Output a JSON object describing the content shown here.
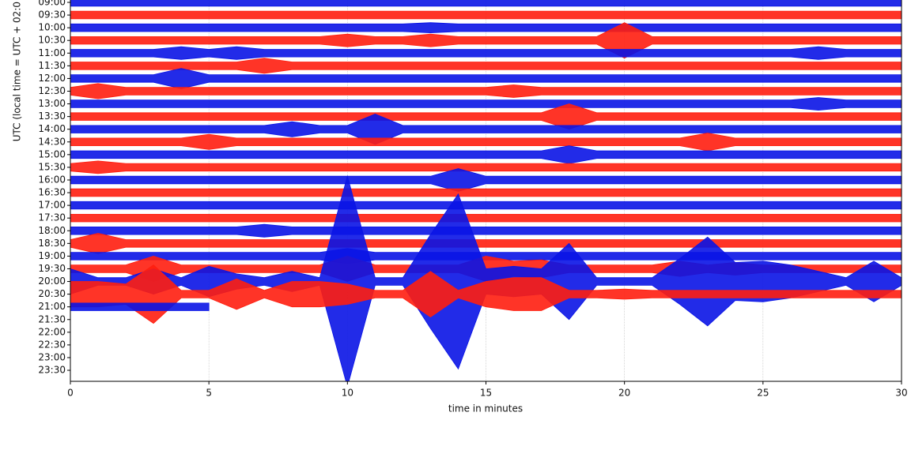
{
  "chart_data": {
    "type": "helicorder",
    "xlabel": "time in minutes",
    "ylabel": "UTC (local time = UTC + 02:0",
    "categories": [
      "09:00",
      "09:30",
      "10:00",
      "10:30",
      "11:00",
      "11:30",
      "12:00",
      "12:30",
      "13:00",
      "13:30",
      "14:00",
      "14:30",
      "15:00",
      "15:30",
      "16:00",
      "16:30",
      "17:00",
      "17:30",
      "18:00",
      "18:30",
      "19:00",
      "19:30",
      "20:00",
      "20:30",
      "21:00",
      "21:30",
      "22:00",
      "22:30",
      "23:00",
      "23:30"
    ],
    "xlim": [
      0,
      30
    ],
    "xticks": [
      0,
      5,
      10,
      15,
      20,
      25,
      30
    ],
    "grid": true,
    "x": [
      0,
      1,
      2,
      3,
      4,
      5,
      6,
      7,
      8,
      9,
      10,
      11,
      12,
      13,
      14,
      15,
      16,
      17,
      18,
      19,
      20,
      21,
      22,
      23,
      24,
      25,
      26,
      27,
      28,
      29,
      30
    ],
    "traces": [
      {
        "color": "#0a14e6",
        "values": [
          0.3,
          0.3,
          0.3,
          0.3,
          0.3,
          0.3,
          0.3,
          0.3,
          0.3,
          0.3,
          0.3,
          0.3,
          0.3,
          0.3,
          0.3,
          0.3,
          0.3,
          0.3,
          0.3,
          0.3,
          0.3,
          0.3,
          0.3,
          0.3,
          0.3,
          0.3,
          0.3,
          0.3,
          0.3,
          0.3,
          0.3
        ]
      },
      {
        "color": "#ff1e0f",
        "values": [
          0.3,
          0.3,
          0.3,
          0.3,
          0.3,
          0.3,
          0.3,
          0.3,
          0.3,
          0.3,
          0.3,
          0.3,
          0.3,
          0.3,
          0.3,
          0.3,
          0.3,
          0.3,
          0.3,
          0.3,
          0.3,
          0.3,
          0.3,
          0.3,
          0.3,
          0.3,
          0.3,
          0.3,
          0.3,
          0.3,
          0.3
        ]
      },
      {
        "color": "#0a14e6",
        "values": [
          0.3,
          0.3,
          0.3,
          0.3,
          0.3,
          0.3,
          0.3,
          0.3,
          0.3,
          0.3,
          0.3,
          0.3,
          0.3,
          0.4,
          0.3,
          0.3,
          0.3,
          0.3,
          0.3,
          0.3,
          0.3,
          0.3,
          0.3,
          0.3,
          0.3,
          0.3,
          0.3,
          0.3,
          0.3,
          0.3,
          0.3
        ]
      },
      {
        "color": "#ff1e0f",
        "values": [
          0.3,
          0.3,
          0.3,
          0.3,
          0.3,
          0.3,
          0.3,
          0.3,
          0.3,
          0.3,
          0.5,
          0.3,
          0.3,
          0.5,
          0.3,
          0.3,
          0.3,
          0.3,
          0.3,
          0.3,
          1.4,
          0.3,
          0.3,
          0.3,
          0.3,
          0.3,
          0.3,
          0.3,
          0.3,
          0.3,
          0.3
        ]
      },
      {
        "color": "#0a14e6",
        "values": [
          0.3,
          0.3,
          0.3,
          0.3,
          0.5,
          0.3,
          0.5,
          0.3,
          0.3,
          0.3,
          0.3,
          0.3,
          0.3,
          0.3,
          0.3,
          0.3,
          0.3,
          0.3,
          0.3,
          0.3,
          0.3,
          0.3,
          0.3,
          0.3,
          0.3,
          0.3,
          0.3,
          0.5,
          0.3,
          0.3,
          0.3
        ]
      },
      {
        "color": "#ff1e0f",
        "values": [
          0.3,
          0.3,
          0.3,
          0.3,
          0.3,
          0.3,
          0.3,
          0.6,
          0.3,
          0.3,
          0.3,
          0.3,
          0.3,
          0.3,
          0.3,
          0.3,
          0.3,
          0.3,
          0.3,
          0.3,
          0.3,
          0.3,
          0.3,
          0.3,
          0.3,
          0.3,
          0.3,
          0.3,
          0.3,
          0.3,
          0.3
        ]
      },
      {
        "color": "#0a14e6",
        "values": [
          0.3,
          0.3,
          0.3,
          0.3,
          0.8,
          0.3,
          0.3,
          0.3,
          0.3,
          0.3,
          0.3,
          0.3,
          0.3,
          0.3,
          0.3,
          0.3,
          0.3,
          0.3,
          0.3,
          0.3,
          0.3,
          0.3,
          0.3,
          0.3,
          0.3,
          0.3,
          0.3,
          0.3,
          0.3,
          0.3,
          0.3
        ]
      },
      {
        "color": "#ff1e0f",
        "values": [
          0.3,
          0.6,
          0.3,
          0.3,
          0.3,
          0.3,
          0.3,
          0.3,
          0.3,
          0.3,
          0.3,
          0.3,
          0.3,
          0.3,
          0.3,
          0.3,
          0.5,
          0.3,
          0.3,
          0.3,
          0.3,
          0.3,
          0.3,
          0.3,
          0.3,
          0.3,
          0.3,
          0.3,
          0.3,
          0.3,
          0.3
        ]
      },
      {
        "color": "#0a14e6",
        "values": [
          0.3,
          0.3,
          0.3,
          0.3,
          0.3,
          0.3,
          0.3,
          0.3,
          0.3,
          0.3,
          0.3,
          0.3,
          0.3,
          0.3,
          0.3,
          0.3,
          0.3,
          0.3,
          0.3,
          0.3,
          0.3,
          0.3,
          0.3,
          0.3,
          0.3,
          0.3,
          0.3,
          0.5,
          0.3,
          0.3,
          0.3
        ]
      },
      {
        "color": "#ff1e0f",
        "values": [
          0.3,
          0.3,
          0.3,
          0.3,
          0.3,
          0.3,
          0.3,
          0.3,
          0.3,
          0.3,
          0.3,
          0.3,
          0.3,
          0.3,
          0.3,
          0.3,
          0.3,
          0.3,
          1.0,
          0.3,
          0.3,
          0.3,
          0.3,
          0.3,
          0.3,
          0.3,
          0.3,
          0.3,
          0.3,
          0.3,
          0.3
        ]
      },
      {
        "color": "#0a14e6",
        "values": [
          0.3,
          0.3,
          0.3,
          0.3,
          0.3,
          0.3,
          0.3,
          0.3,
          0.6,
          0.3,
          0.3,
          1.2,
          0.3,
          0.3,
          0.3,
          0.3,
          0.3,
          0.3,
          0.3,
          0.3,
          0.3,
          0.3,
          0.3,
          0.3,
          0.3,
          0.3,
          0.3,
          0.3,
          0.3,
          0.3,
          0.3
        ]
      },
      {
        "color": "#ff1e0f",
        "values": [
          0.3,
          0.3,
          0.3,
          0.3,
          0.3,
          0.6,
          0.3,
          0.3,
          0.3,
          0.3,
          0.3,
          0.3,
          0.3,
          0.3,
          0.3,
          0.3,
          0.3,
          0.3,
          0.3,
          0.3,
          0.3,
          0.3,
          0.3,
          0.7,
          0.3,
          0.3,
          0.3,
          0.3,
          0.3,
          0.3,
          0.3
        ]
      },
      {
        "color": "#0a14e6",
        "values": [
          0.3,
          0.3,
          0.3,
          0.3,
          0.3,
          0.3,
          0.3,
          0.3,
          0.3,
          0.3,
          0.3,
          0.3,
          0.3,
          0.3,
          0.3,
          0.3,
          0.3,
          0.3,
          0.7,
          0.3,
          0.3,
          0.3,
          0.3,
          0.3,
          0.3,
          0.3,
          0.3,
          0.3,
          0.3,
          0.3,
          0.3
        ]
      },
      {
        "color": "#ff1e0f",
        "values": [
          0.3,
          0.5,
          0.3,
          0.3,
          0.3,
          0.3,
          0.3,
          0.3,
          0.3,
          0.3,
          0.3,
          0.3,
          0.3,
          0.3,
          0.3,
          0.3,
          0.3,
          0.3,
          0.3,
          0.3,
          0.3,
          0.3,
          0.3,
          0.3,
          0.3,
          0.3,
          0.3,
          0.3,
          0.3,
          0.3,
          0.3
        ]
      },
      {
        "color": "#0a14e6",
        "values": [
          0.3,
          0.3,
          0.3,
          0.3,
          0.3,
          0.3,
          0.3,
          0.3,
          0.3,
          0.3,
          0.3,
          0.3,
          0.3,
          0.3,
          0.9,
          0.3,
          0.3,
          0.3,
          0.3,
          0.3,
          0.3,
          0.3,
          0.3,
          0.3,
          0.3,
          0.3,
          0.3,
          0.3,
          0.3,
          0.3,
          0.3
        ]
      },
      {
        "color": "#ff1e0f",
        "values": [
          0.3,
          0.3,
          0.3,
          0.3,
          0.3,
          0.3,
          0.3,
          0.3,
          0.3,
          0.3,
          0.3,
          0.3,
          0.3,
          0.3,
          0.3,
          0.3,
          0.3,
          0.3,
          0.3,
          0.3,
          0.3,
          0.3,
          0.3,
          0.3,
          0.3,
          0.3,
          0.3,
          0.3,
          0.3,
          0.3,
          0.3
        ]
      },
      {
        "color": "#0a14e6",
        "values": [
          0.3,
          0.3,
          0.3,
          0.3,
          0.3,
          0.3,
          0.3,
          0.3,
          0.3,
          0.3,
          0.3,
          0.3,
          0.3,
          0.3,
          0.3,
          0.3,
          0.3,
          0.3,
          0.3,
          0.3,
          0.3,
          0.3,
          0.3,
          0.3,
          0.3,
          0.3,
          0.3,
          0.3,
          0.3,
          0.3,
          0.3
        ]
      },
      {
        "color": "#ff1e0f",
        "values": [
          0.3,
          0.3,
          0.3,
          0.3,
          0.3,
          0.3,
          0.3,
          0.3,
          0.3,
          0.3,
          0.3,
          0.3,
          0.3,
          0.3,
          0.3,
          0.3,
          0.3,
          0.3,
          0.3,
          0.3,
          0.3,
          0.3,
          0.3,
          0.3,
          0.3,
          0.3,
          0.3,
          0.3,
          0.3,
          0.3,
          0.3
        ]
      },
      {
        "color": "#0a14e6",
        "values": [
          0.3,
          0.3,
          0.3,
          0.3,
          0.3,
          0.3,
          0.3,
          0.5,
          0.3,
          0.3,
          0.3,
          0.3,
          0.3,
          0.3,
          0.3,
          0.3,
          0.3,
          0.3,
          0.3,
          0.3,
          0.3,
          0.3,
          0.3,
          0.3,
          0.3,
          0.3,
          0.3,
          0.3,
          0.3,
          0.3,
          0.3
        ]
      },
      {
        "color": "#ff1e0f",
        "values": [
          0.3,
          0.8,
          0.3,
          0.3,
          0.3,
          0.3,
          0.3,
          0.3,
          0.3,
          0.3,
          0.3,
          0.3,
          0.3,
          0.3,
          0.3,
          0.3,
          0.3,
          0.3,
          0.3,
          0.3,
          0.3,
          0.3,
          0.3,
          0.3,
          0.3,
          0.3,
          0.3,
          0.3,
          0.3,
          0.3,
          0.3
        ]
      },
      {
        "color": "#0a14e6",
        "values": [
          0.3,
          0.3,
          0.3,
          0.3,
          0.3,
          0.3,
          0.3,
          0.3,
          0.3,
          0.3,
          0.6,
          0.3,
          0.3,
          0.3,
          0.3,
          0.3,
          0.3,
          0.3,
          0.3,
          0.3,
          0.3,
          0.3,
          0.3,
          0.3,
          0.3,
          0.3,
          0.3,
          0.3,
          0.3,
          0.3,
          0.3
        ]
      },
      {
        "color": "#ff1e0f",
        "values": [
          0.3,
          0.3,
          0.3,
          1.0,
          0.3,
          0.3,
          0.3,
          0.3,
          0.3,
          0.3,
          1.0,
          0.3,
          0.3,
          0.3,
          0.3,
          1.0,
          0.6,
          0.7,
          0.3,
          0.3,
          0.3,
          0.3,
          0.6,
          0.3,
          0.5,
          0.3,
          0.3,
          0.3,
          0.3,
          0.3,
          0.3
        ]
      },
      {
        "color": "#0a14e6",
        "values": [
          1.0,
          0.3,
          0.3,
          1.0,
          0.3,
          1.2,
          0.6,
          0.3,
          0.8,
          0.3,
          8.3,
          0.3,
          0.3,
          3.7,
          6.9,
          1.0,
          1.2,
          1.0,
          3.0,
          0.3,
          0.3,
          0.3,
          1.8,
          3.5,
          1.5,
          1.6,
          1.3,
          0.8,
          0.3,
          1.6,
          0.3
        ]
      },
      {
        "color": "#ff1e0f",
        "values": [
          1.0,
          1.0,
          0.8,
          2.3,
          0.3,
          0.3,
          1.2,
          0.3,
          1.0,
          1.0,
          0.8,
          0.3,
          0.3,
          1.8,
          0.3,
          1.0,
          1.3,
          1.3,
          0.3,
          0.3,
          0.4,
          0.3,
          0.3,
          0.3,
          0.3,
          0.3,
          0.3,
          0.3,
          0.3,
          0.3,
          0.3
        ]
      },
      {
        "color": "#0a14e6",
        "values": [
          0.3,
          0.3,
          0.3,
          0.3,
          0.3,
          0.3,
          null,
          null,
          null,
          null,
          null,
          null,
          null,
          null,
          null,
          null,
          null,
          null,
          null,
          null,
          null,
          null,
          null,
          null,
          null,
          null,
          null,
          null,
          null,
          null,
          null
        ]
      }
    ]
  }
}
